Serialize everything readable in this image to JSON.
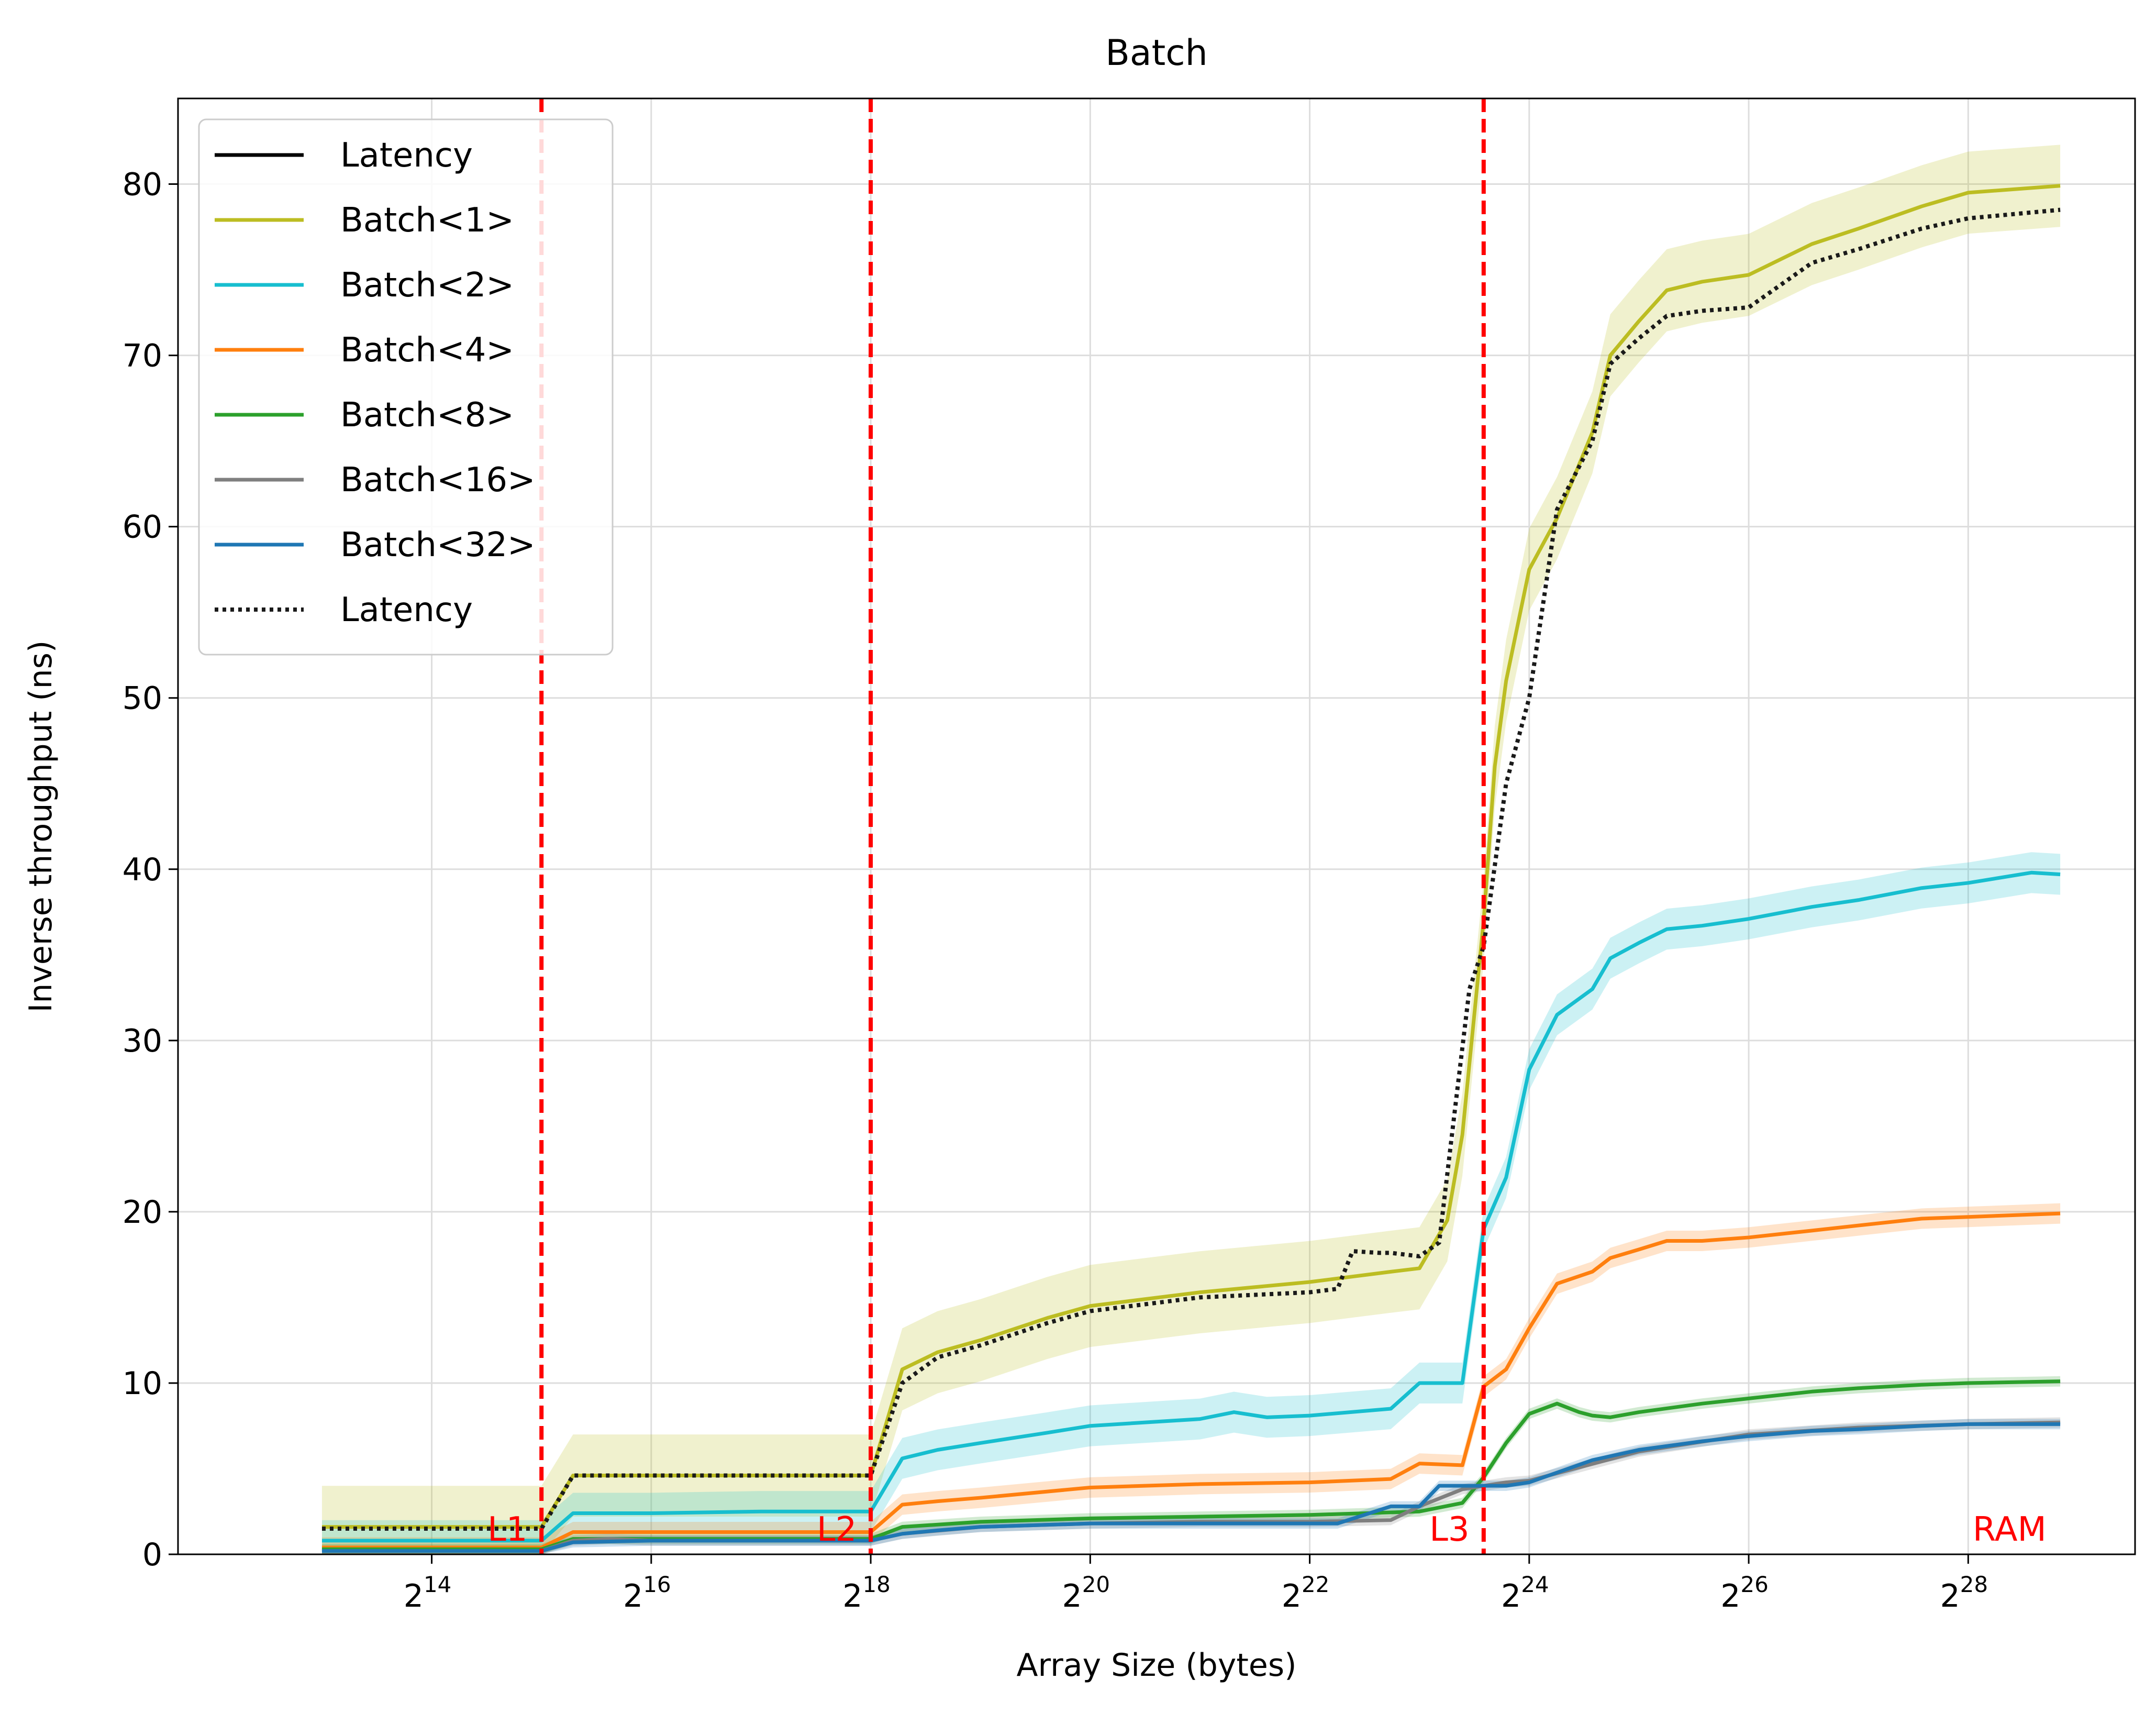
{
  "chart_data": {
    "type": "line",
    "title": "Batch",
    "xlabel": "Array Size (bytes)",
    "ylabel": "Inverse throughput (ns)",
    "x_scale": "log2",
    "x_unit": "bytes",
    "xlim": [
      3300,
      770000000
    ],
    "ylim": [
      0,
      85
    ],
    "grid": true,
    "legend_placement": "top-left",
    "x_ticks": [
      {
        "value": 16384,
        "base": "2",
        "exp": "14"
      },
      {
        "value": 65536,
        "base": "2",
        "exp": "16"
      },
      {
        "value": 262144,
        "base": "2",
        "exp": "18"
      },
      {
        "value": 1048576,
        "base": "2",
        "exp": "20"
      },
      {
        "value": 4194304,
        "base": "2",
        "exp": "22"
      },
      {
        "value": 16777216,
        "base": "2",
        "exp": "24"
      },
      {
        "value": 67108864,
        "base": "2",
        "exp": "26"
      },
      {
        "value": 268435456,
        "base": "2",
        "exp": "28"
      }
    ],
    "y_ticks": [
      {
        "value": 0,
        "label": "0"
      },
      {
        "value": 10,
        "label": "10"
      },
      {
        "value": 20,
        "label": "20"
      },
      {
        "value": 30,
        "label": "30"
      },
      {
        "value": 40,
        "label": "40"
      },
      {
        "value": 50,
        "label": "50"
      },
      {
        "value": 60,
        "label": "60"
      },
      {
        "value": 70,
        "label": "70"
      },
      {
        "value": 80,
        "label": "80"
      }
    ],
    "cache_lines": [
      {
        "label": "L1",
        "x": 32768
      },
      {
        "label": "L2",
        "x": 262144
      },
      {
        "label": "L3",
        "x": 12582912
      }
    ],
    "region_labels": [
      {
        "label": "L1",
        "x": 30000,
        "y": 1.4
      },
      {
        "label": "L2",
        "x": 240000,
        "y": 1.4
      },
      {
        "label": "L3",
        "x": 11500000,
        "y": 1.4
      },
      {
        "label": "RAM",
        "x": 440000000,
        "y": 1.4
      }
    ],
    "colors": {
      "cache_line": "#ff0000",
      "grid": "#dddddd"
    },
    "series": [
      {
        "name": "Latency",
        "color": "#000000",
        "style": "solid",
        "x": [],
        "values": []
      },
      {
        "name": "Batch<1>",
        "color": "#bcbd22",
        "style": "solid",
        "band": true,
        "x": [
          8192,
          16384,
          32768,
          40000,
          65536,
          131072,
          262144,
          320000,
          400000,
          524288,
          800000,
          1048576,
          2097152,
          4194304,
          7000000,
          8388608,
          10000000,
          11000000,
          12582912,
          13500000,
          14500000,
          16777216,
          20000000,
          25000000,
          28000000,
          33554432,
          40000000,
          50000000,
          67108864,
          100000000,
          134217728,
          200000000,
          268435456,
          480000000
        ],
        "values": [
          1.6,
          1.6,
          1.6,
          4.6,
          4.6,
          4.6,
          4.6,
          10.8,
          11.8,
          12.5,
          13.8,
          14.5,
          15.3,
          15.9,
          16.5,
          16.7,
          19.5,
          24.5,
          37.0,
          46.0,
          51.0,
          57.5,
          60.5,
          65.5,
          70.0,
          72.0,
          73.8,
          74.3,
          74.7,
          76.5,
          77.4,
          78.7,
          79.5,
          79.9
        ]
      },
      {
        "name": "Batch<2>",
        "color": "#17becf",
        "style": "solid",
        "band": true,
        "x": [
          8192,
          16384,
          32768,
          40000,
          65536,
          131072,
          262144,
          320000,
          400000,
          524288,
          800000,
          1048576,
          2097152,
          2600000,
          3200000,
          4194304,
          7000000,
          8388608,
          11000000,
          12582912,
          14500000,
          16777216,
          20000000,
          25000000,
          28000000,
          33554432,
          40000000,
          50000000,
          67108864,
          100000000,
          134217728,
          200000000,
          268435456,
          400000000,
          480000000
        ],
        "values": [
          0.8,
          0.8,
          0.8,
          2.4,
          2.4,
          2.5,
          2.5,
          5.6,
          6.1,
          6.5,
          7.1,
          7.5,
          7.9,
          8.3,
          8.0,
          8.1,
          8.5,
          10.0,
          10.0,
          19.0,
          22.0,
          28.3,
          31.5,
          33.0,
          34.8,
          35.7,
          36.5,
          36.7,
          37.1,
          37.8,
          38.2,
          38.9,
          39.2,
          39.8,
          39.7
        ]
      },
      {
        "name": "Batch<4>",
        "color": "#ff7f0e",
        "style": "solid",
        "band": true,
        "x": [
          8192,
          16384,
          32768,
          40000,
          65536,
          131072,
          262144,
          320000,
          400000,
          524288,
          1048576,
          2097152,
          4194304,
          7000000,
          8388608,
          11000000,
          12582912,
          14500000,
          16777216,
          20000000,
          25000000,
          28000000,
          33554432,
          40000000,
          50000000,
          67108864,
          100000000,
          134217728,
          200000000,
          268435456,
          480000000
        ],
        "values": [
          0.4,
          0.4,
          0.4,
          1.3,
          1.3,
          1.3,
          1.3,
          2.9,
          3.1,
          3.3,
          3.9,
          4.1,
          4.2,
          4.4,
          5.3,
          5.2,
          9.8,
          10.8,
          13.2,
          15.8,
          16.5,
          17.3,
          17.8,
          18.3,
          18.3,
          18.5,
          18.9,
          19.2,
          19.6,
          19.7,
          19.9
        ]
      },
      {
        "name": "Batch<8>",
        "color": "#2ca02c",
        "style": "solid",
        "band": true,
        "x": [
          8192,
          16384,
          32768,
          40000,
          65536,
          131072,
          262144,
          320000,
          524288,
          1048576,
          2097152,
          4194304,
          8388608,
          11000000,
          12582912,
          14500000,
          16777216,
          20000000,
          23000000,
          25000000,
          28000000,
          33554432,
          50000000,
          67108864,
          100000000,
          134217728,
          200000000,
          268435456,
          480000000
        ],
        "values": [
          0.3,
          0.3,
          0.3,
          0.9,
          0.9,
          0.9,
          0.9,
          1.6,
          1.9,
          2.1,
          2.2,
          2.3,
          2.5,
          3.0,
          4.5,
          6.5,
          8.2,
          8.8,
          8.3,
          8.1,
          8.0,
          8.3,
          8.8,
          9.1,
          9.5,
          9.7,
          9.9,
          10.0,
          10.1
        ]
      },
      {
        "name": "Batch<16>",
        "color": "#7f7f7f",
        "style": "solid",
        "band": true,
        "x": [
          8192,
          16384,
          32768,
          40000,
          50000,
          65536,
          131072,
          262144,
          320000,
          524288,
          1048576,
          2097152,
          4194304,
          7000000,
          8388608,
          11000000,
          12582912,
          14500000,
          16777216,
          33554432,
          67108864,
          134217728,
          268435456,
          480000000
        ],
        "values": [
          0.2,
          0.2,
          0.2,
          0.8,
          0.9,
          0.8,
          0.8,
          0.8,
          1.2,
          1.6,
          1.8,
          1.9,
          1.9,
          2.0,
          2.8,
          3.8,
          4.0,
          4.2,
          4.3,
          6.0,
          7.0,
          7.4,
          7.6,
          7.7
        ]
      },
      {
        "name": "Batch<32>",
        "color": "#1f77b4",
        "style": "solid",
        "band": true,
        "x": [
          8192,
          16384,
          32768,
          40000,
          65536,
          131072,
          262144,
          320000,
          400000,
          524288,
          1048576,
          2097152,
          4194304,
          5000000,
          7000000,
          8388608,
          9500000,
          12582912,
          14500000,
          16777216,
          25000000,
          33554432,
          50000000,
          67108864,
          100000000,
          134217728,
          200000000,
          268435456,
          480000000
        ],
        "values": [
          0.2,
          0.2,
          0.2,
          0.7,
          0.8,
          0.8,
          0.8,
          1.2,
          1.4,
          1.6,
          1.8,
          1.8,
          1.8,
          1.8,
          2.8,
          2.8,
          4.0,
          4.0,
          4.0,
          4.2,
          5.5,
          6.1,
          6.6,
          6.9,
          7.2,
          7.3,
          7.5,
          7.6,
          7.6
        ]
      },
      {
        "name": "Latency",
        "color": "#1a1a1a",
        "style": "dotted",
        "x": [
          8192,
          16384,
          32768,
          40000,
          65536,
          131072,
          262144,
          320000,
          400000,
          524288,
          800000,
          1048576,
          2097152,
          4194304,
          5000000,
          5500000,
          6500000,
          7000000,
          8388608,
          9500000,
          10500000,
          11500000,
          12582912,
          14500000,
          16777216,
          20000000,
          25000000,
          28000000,
          33554432,
          40000000,
          50000000,
          67108864,
          100000000,
          134217728,
          200000000,
          268435456,
          480000000
        ],
        "values": [
          1.5,
          1.5,
          1.5,
          4.6,
          4.6,
          4.6,
          4.6,
          10.0,
          11.5,
          12.2,
          13.5,
          14.2,
          15.0,
          15.3,
          15.5,
          17.7,
          17.6,
          17.6,
          17.4,
          18.2,
          26.0,
          33.0,
          35.5,
          45.0,
          50.0,
          61.0,
          65.0,
          69.5,
          71.0,
          72.3,
          72.6,
          72.8,
          75.4,
          76.2,
          77.4,
          78.0,
          78.5
        ]
      }
    ]
  }
}
